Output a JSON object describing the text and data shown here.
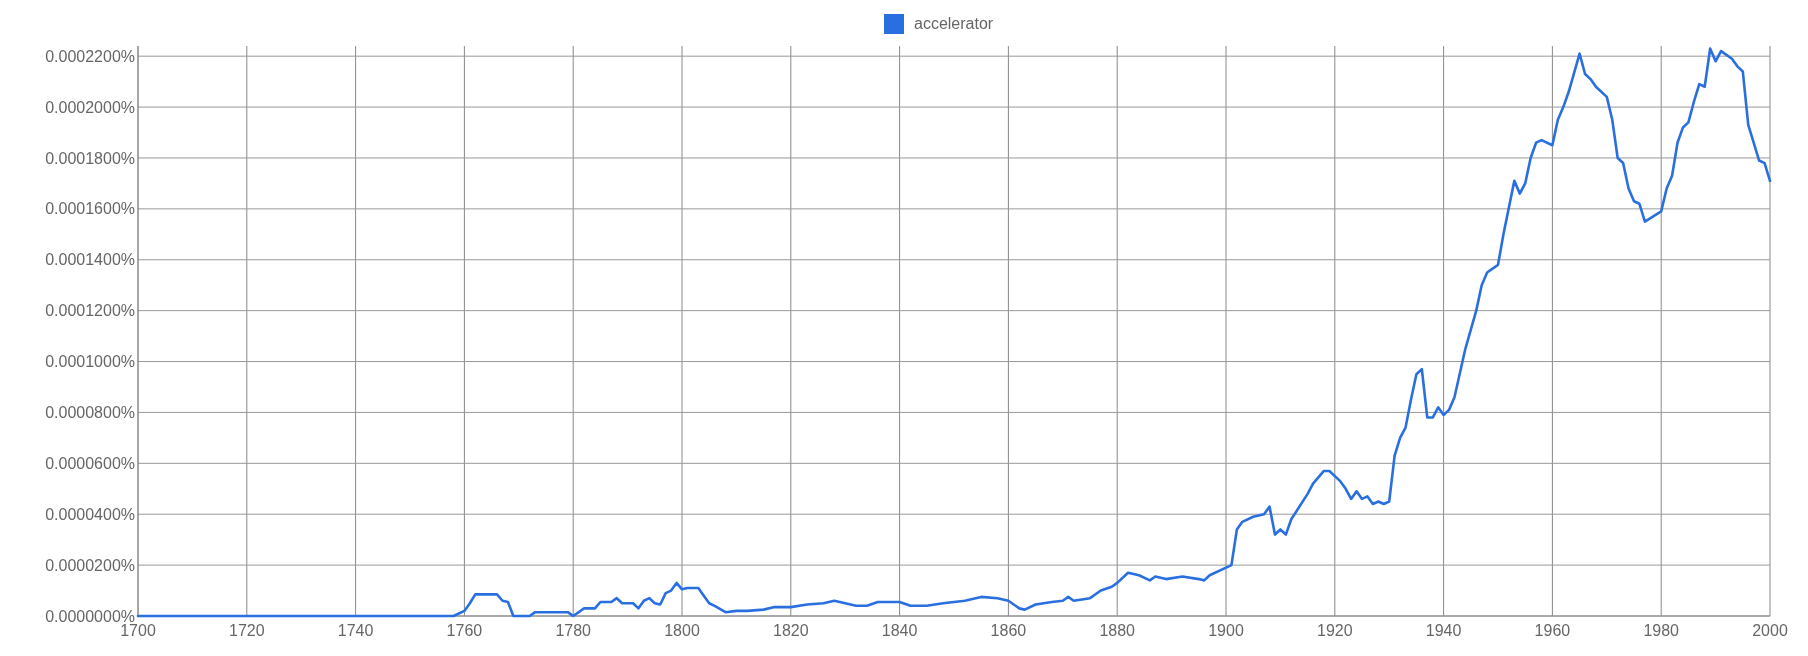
{
  "chart_data": {
    "type": "line",
    "legend": "top",
    "grid": true,
    "marker": "none",
    "line_style": "solid",
    "xlim": [
      1700,
      2000
    ],
    "xticks": [
      1700,
      1720,
      1740,
      1760,
      1780,
      1800,
      1820,
      1840,
      1860,
      1880,
      1900,
      1920,
      1940,
      1960,
      1980,
      2000
    ],
    "ylim": [
      0,
      0.000224
    ],
    "yticks": [
      {
        "value": 0,
        "label": "0.0000000%"
      },
      {
        "value": 2e-05,
        "label": "0.0000200%"
      },
      {
        "value": 4e-05,
        "label": "0.0000400%"
      },
      {
        "value": 6e-05,
        "label": "0.0000600%"
      },
      {
        "value": 8e-05,
        "label": "0.0000800%"
      },
      {
        "value": 0.0001,
        "label": "0.0001000%"
      },
      {
        "value": 0.00012,
        "label": "0.0001200%"
      },
      {
        "value": 0.00014,
        "label": "0.0001400%"
      },
      {
        "value": 0.00016,
        "label": "0.0001600%"
      },
      {
        "value": 0.00018,
        "label": "0.0001800%"
      },
      {
        "value": 0.0002,
        "label": "0.0002000%"
      },
      {
        "value": 0.00022,
        "label": "0.0002200%"
      }
    ],
    "x": [
      1700,
      1758,
      1760,
      1761,
      1762,
      1766,
      1767,
      1768,
      1769,
      1772,
      1773,
      1779,
      1780,
      1782,
      1784,
      1785,
      1787,
      1788,
      1789,
      1791,
      1792,
      1793,
      1794,
      1795,
      1796,
      1797,
      1798,
      1799,
      1800,
      1801,
      1803,
      1804,
      1805,
      1806,
      1808,
      1810,
      1812,
      1815,
      1817,
      1820,
      1823,
      1826,
      1828,
      1830,
      1832,
      1834,
      1836,
      1840,
      1842,
      1845,
      1848,
      1850,
      1852,
      1855,
      1858,
      1860,
      1862,
      1863,
      1865,
      1868,
      1870,
      1871,
      1872,
      1875,
      1877,
      1879,
      1880,
      1882,
      1884,
      1886,
      1887,
      1889,
      1892,
      1895,
      1896,
      1897,
      1900,
      1901,
      1902,
      1903,
      1905,
      1907,
      1908,
      1909,
      1910,
      1911,
      1912,
      1915,
      1916,
      1918,
      1919,
      1921,
      1922,
      1923,
      1924,
      1925,
      1926,
      1927,
      1928,
      1929,
      1930,
      1931,
      1932,
      1933,
      1934,
      1935,
      1936,
      1937,
      1938,
      1939,
      1940,
      1941,
      1942,
      1944,
      1946,
      1947,
      1948,
      1950,
      1951,
      1953,
      1954,
      1955,
      1956,
      1957,
      1958,
      1960,
      1961,
      1962,
      1963,
      1965,
      1966,
      1967,
      1968,
      1970,
      1971,
      1972,
      1973,
      1974,
      1975,
      1976,
      1977,
      1980,
      1981,
      1982,
      1983,
      1984,
      1985,
      1986,
      1987,
      1988,
      1989,
      1990,
      1991,
      1993,
      1994,
      1995,
      1996,
      1997,
      1998,
      1999,
      2000
    ],
    "series": [
      {
        "name": "accelerator",
        "color": "#2a6fe0",
        "values": [
          0,
          0,
          2e-06,
          5e-06,
          8.5e-06,
          8.5e-06,
          6e-06,
          5.5e-06,
          0,
          0,
          1.5e-06,
          1.5e-06,
          0,
          3e-06,
          3e-06,
          5.5e-06,
          5.5e-06,
          7e-06,
          5e-06,
          5e-06,
          3e-06,
          6e-06,
          7e-06,
          5e-06,
          4.5e-06,
          9e-06,
          1e-05,
          1.3e-05,
          1.05e-05,
          1.1e-05,
          1.1e-05,
          8e-06,
          5e-06,
          4e-06,
          1.5e-06,
          2e-06,
          2e-06,
          2.5e-06,
          3.5e-06,
          3.5e-06,
          4.5e-06,
          5e-06,
          6e-06,
          5e-06,
          4e-06,
          4e-06,
          5.5e-06,
          5.5e-06,
          4e-06,
          4e-06,
          5e-06,
          5.5e-06,
          6e-06,
          7.5e-06,
          7e-06,
          6e-06,
          3e-06,
          2.5e-06,
          4.5e-06,
          5.5e-06,
          6e-06,
          7.5e-06,
          6e-06,
          7e-06,
          1e-05,
          1.15e-05,
          1.3e-05,
          1.7e-05,
          1.6e-05,
          1.4e-05,
          1.55e-05,
          1.45e-05,
          1.55e-05,
          1.45e-05,
          1.4e-05,
          1.6e-05,
          1.9e-05,
          2e-05,
          3.4e-05,
          3.7e-05,
          3.9e-05,
          4e-05,
          4.3e-05,
          3.2e-05,
          3.4e-05,
          3.2e-05,
          3.8e-05,
          4.8e-05,
          5.2e-05,
          5.7e-05,
          5.7e-05,
          5.3e-05,
          5e-05,
          4.6e-05,
          4.9e-05,
          4.6e-05,
          4.7e-05,
          4.4e-05,
          4.5e-05,
          4.4e-05,
          4.5e-05,
          6.3e-05,
          7e-05,
          7.4e-05,
          8.5e-05,
          9.5e-05,
          9.7e-05,
          7.8e-05,
          7.8e-05,
          8.2e-05,
          7.9e-05,
          8.1e-05,
          8.6e-05,
          0.000105,
          0.00012,
          0.00013,
          0.000135,
          0.000138,
          0.00015,
          0.000171,
          0.000166,
          0.00017,
          0.00018,
          0.000186,
          0.000187,
          0.000185,
          0.000195,
          0.0002,
          0.000206,
          0.000221,
          0.000213,
          0.000211,
          0.000208,
          0.000204,
          0.000195,
          0.00018,
          0.000178,
          0.000168,
          0.000163,
          0.000162,
          0.000155,
          0.000159,
          0.000168,
          0.000173,
          0.000186,
          0.000192,
          0.000194,
          0.000202,
          0.000209,
          0.000208,
          0.000223,
          0.000218,
          0.000222,
          0.000219,
          0.000216,
          0.000214,
          0.000193,
          0.000186,
          0.000179,
          0.000178,
          0.000171
        ]
      }
    ]
  }
}
